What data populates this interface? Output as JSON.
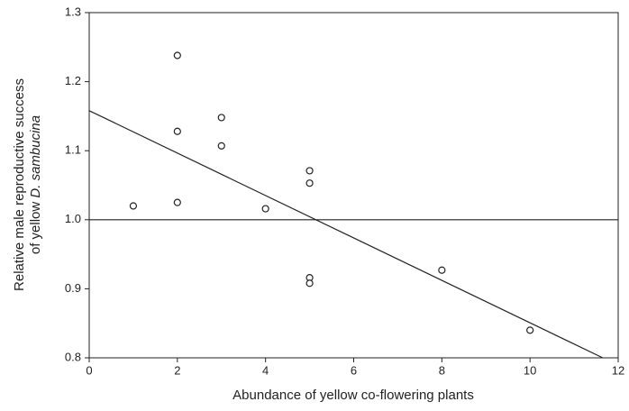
{
  "chart_data": {
    "type": "scatter",
    "xlabel": "Abundance of yellow co-flowering plants",
    "ylabel": {
      "line1": "Relative male reproductive success",
      "line2": "of yellow",
      "line2_italic": "D. sambucina"
    },
    "x": [
      1,
      2,
      2,
      2,
      3,
      3,
      4,
      5,
      5,
      5,
      5,
      8,
      10
    ],
    "values": [
      1.02,
      1.238,
      1.128,
      1.025,
      1.148,
      1.107,
      1.016,
      1.071,
      1.053,
      0.916,
      0.908,
      0.927,
      0.84
    ],
    "fit_line": {
      "x": [
        0,
        11.65
      ],
      "values": [
        1.158,
        0.8
      ]
    },
    "reference_line": 1.0,
    "xlim": [
      0,
      12
    ],
    "ylim": [
      0.8,
      1.3
    ],
    "xticks": [
      0,
      2,
      4,
      6,
      8,
      10,
      12
    ],
    "yticks": [
      0.8,
      0.9,
      {
        "value": 1.0,
        "label": "1.0"
      },
      1.1,
      1.2,
      1.3
    ]
  }
}
